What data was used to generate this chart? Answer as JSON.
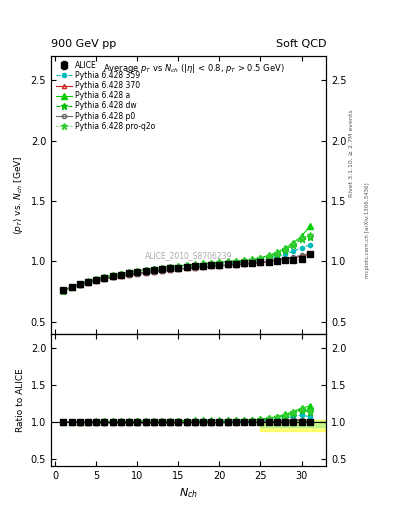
{
  "title_top_left": "900 GeV pp",
  "title_top_right": "Soft QCD",
  "plot_title": "Average $p_T$ vs $N_{ch}$ ($|\\eta|$ < 0.8, $p_T$ > 0.5 GeV)",
  "ylabel_main": "$\\langle p_T \\rangle$ vs. $N_{ch}$ [GeV]",
  "ylabel_ratio": "Ratio to ALICE",
  "xlabel": "$N_{ch}$",
  "right_label_top": "Rivet 3.1.10, ≥ 2.7M events",
  "right_label_bot": "mcplots.cern.ch [arXiv:1306.3436]",
  "watermark": "ALICE_2010_S8706239",
  "alice_x": [
    1,
    2,
    3,
    4,
    5,
    6,
    7,
    8,
    9,
    10,
    11,
    12,
    13,
    14,
    15,
    16,
    17,
    18,
    19,
    20,
    21,
    22,
    23,
    24,
    25,
    26,
    27,
    28,
    29,
    30,
    31
  ],
  "alice_y": [
    0.762,
    0.79,
    0.813,
    0.832,
    0.85,
    0.865,
    0.879,
    0.891,
    0.902,
    0.911,
    0.92,
    0.928,
    0.935,
    0.942,
    0.948,
    0.954,
    0.959,
    0.964,
    0.969,
    0.974,
    0.978,
    0.982,
    0.986,
    0.99,
    0.994,
    0.999,
    1.003,
    1.008,
    1.013,
    1.018,
    1.06
  ],
  "alice_yerr": [
    0.015,
    0.01,
    0.008,
    0.007,
    0.006,
    0.006,
    0.005,
    0.005,
    0.005,
    0.005,
    0.004,
    0.004,
    0.004,
    0.004,
    0.004,
    0.004,
    0.004,
    0.004,
    0.004,
    0.004,
    0.004,
    0.004,
    0.004,
    0.004,
    0.005,
    0.005,
    0.005,
    0.006,
    0.007,
    0.008,
    0.012
  ],
  "p359_x": [
    1,
    2,
    3,
    4,
    5,
    6,
    7,
    8,
    9,
    10,
    11,
    12,
    13,
    14,
    15,
    16,
    17,
    18,
    19,
    20,
    21,
    22,
    23,
    24,
    25,
    26,
    27,
    28,
    29,
    30,
    31
  ],
  "p359_y": [
    0.758,
    0.786,
    0.808,
    0.827,
    0.844,
    0.859,
    0.872,
    0.884,
    0.895,
    0.904,
    0.913,
    0.921,
    0.929,
    0.937,
    0.944,
    0.951,
    0.957,
    0.963,
    0.969,
    0.975,
    0.981,
    0.987,
    0.993,
    0.999,
    1.01,
    1.025,
    1.042,
    1.062,
    1.085,
    1.112,
    1.135
  ],
  "p370_x": [
    1,
    2,
    3,
    4,
    5,
    6,
    7,
    8,
    9,
    10,
    11,
    12,
    13,
    14,
    15,
    16,
    17,
    18,
    19,
    20,
    21,
    22,
    23,
    24,
    25,
    26,
    27,
    28,
    29,
    30,
    31
  ],
  "p370_y": [
    0.758,
    0.784,
    0.806,
    0.824,
    0.84,
    0.854,
    0.867,
    0.878,
    0.889,
    0.898,
    0.907,
    0.915,
    0.922,
    0.929,
    0.936,
    0.942,
    0.948,
    0.953,
    0.958,
    0.963,
    0.968,
    0.973,
    0.978,
    0.983,
    0.99,
    0.998,
    1.007,
    1.018,
    1.03,
    1.044,
    1.058
  ],
  "pa_x": [
    1,
    2,
    3,
    4,
    5,
    6,
    7,
    8,
    9,
    10,
    11,
    12,
    13,
    14,
    15,
    16,
    17,
    18,
    19,
    20,
    21,
    22,
    23,
    24,
    25,
    26,
    27,
    28,
    29,
    30,
    31
  ],
  "pa_y": [
    0.76,
    0.79,
    0.815,
    0.836,
    0.855,
    0.871,
    0.886,
    0.899,
    0.911,
    0.921,
    0.931,
    0.94,
    0.948,
    0.956,
    0.963,
    0.97,
    0.977,
    0.983,
    0.989,
    0.994,
    1.0,
    1.005,
    1.01,
    1.016,
    1.03,
    1.05,
    1.075,
    1.11,
    1.155,
    1.21,
    1.29
  ],
  "pdw_x": [
    1,
    2,
    3,
    4,
    5,
    6,
    7,
    8,
    9,
    10,
    11,
    12,
    13,
    14,
    15,
    16,
    17,
    18,
    19,
    20,
    21,
    22,
    23,
    24,
    25,
    26,
    27,
    28,
    29,
    30,
    31
  ],
  "pdw_y": [
    0.757,
    0.787,
    0.812,
    0.833,
    0.852,
    0.868,
    0.882,
    0.895,
    0.906,
    0.916,
    0.926,
    0.934,
    0.942,
    0.95,
    0.957,
    0.964,
    0.97,
    0.976,
    0.982,
    0.987,
    0.993,
    0.998,
    1.003,
    1.009,
    1.022,
    1.04,
    1.063,
    1.095,
    1.135,
    1.185,
    1.2
  ],
  "pp0_x": [
    1,
    2,
    3,
    4,
    5,
    6,
    7,
    8,
    9,
    10,
    11,
    12,
    13,
    14,
    15,
    16,
    17,
    18,
    19,
    20,
    21,
    22,
    23,
    24,
    25,
    26,
    27,
    28,
    29,
    30,
    31
  ],
  "pp0_y": [
    0.758,
    0.784,
    0.806,
    0.824,
    0.84,
    0.854,
    0.867,
    0.879,
    0.889,
    0.899,
    0.907,
    0.915,
    0.923,
    0.93,
    0.936,
    0.942,
    0.948,
    0.954,
    0.959,
    0.964,
    0.969,
    0.974,
    0.979,
    0.984,
    0.992,
    1.001,
    1.011,
    1.023,
    1.036,
    1.05,
    1.065
  ],
  "pproq2o_x": [
    1,
    2,
    3,
    4,
    5,
    6,
    7,
    8,
    9,
    10,
    11,
    12,
    13,
    14,
    15,
    16,
    17,
    18,
    19,
    20,
    21,
    22,
    23,
    24,
    25,
    26,
    27,
    28,
    29,
    30,
    31
  ],
  "pproq2o_y": [
    0.759,
    0.789,
    0.814,
    0.835,
    0.854,
    0.87,
    0.884,
    0.897,
    0.909,
    0.919,
    0.929,
    0.937,
    0.946,
    0.953,
    0.961,
    0.968,
    0.974,
    0.98,
    0.986,
    0.992,
    0.997,
    1.003,
    1.008,
    1.014,
    1.027,
    1.046,
    1.07,
    1.103,
    1.145,
    1.197,
    1.215
  ],
  "color_359": "#00BBBB",
  "color_370": "#CC2222",
  "color_a": "#00CC00",
  "color_dw": "#00BB00",
  "color_p0": "#666666",
  "color_proq2o": "#33CC33",
  "ylim_main": [
    0.4,
    2.7
  ],
  "ylim_ratio": [
    0.4,
    2.2
  ],
  "xlim": [
    -0.5,
    33
  ],
  "yticks_main": [
    0.5,
    1.0,
    1.5,
    2.0,
    2.5
  ],
  "yticks_ratio": [
    0.5,
    1.0,
    1.5,
    2.0
  ],
  "xticks": [
    0,
    5,
    10,
    15,
    20,
    25,
    30
  ]
}
